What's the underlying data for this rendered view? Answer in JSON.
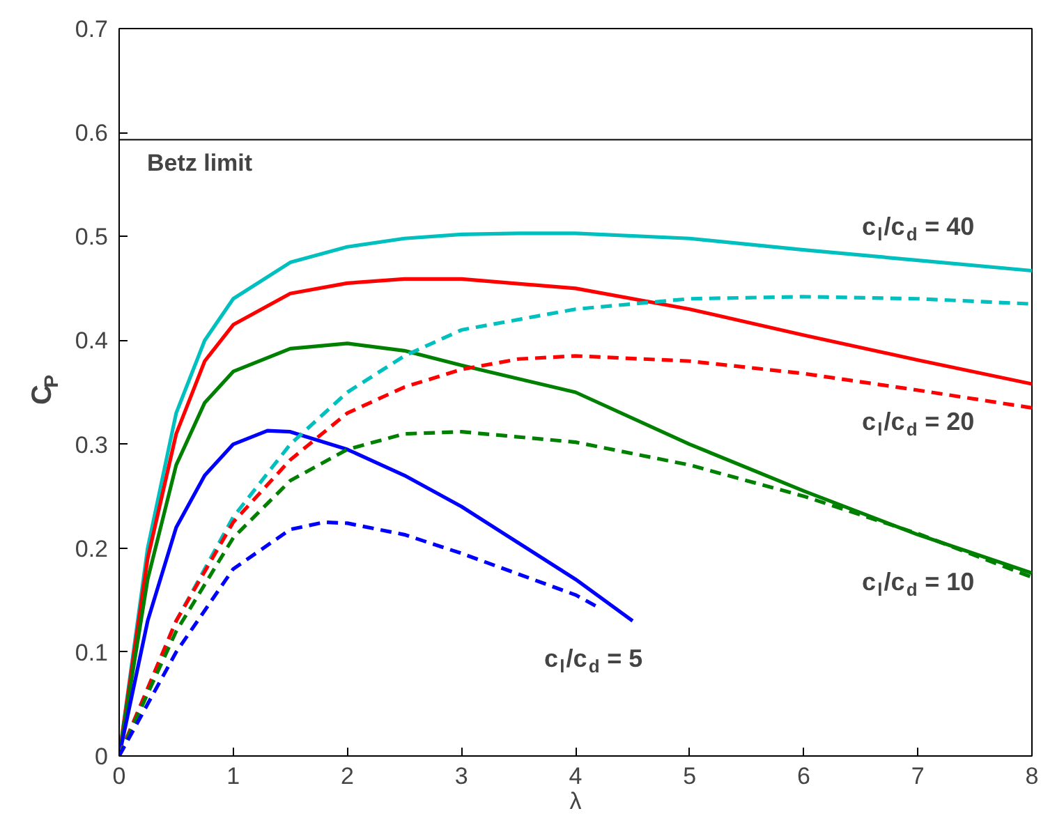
{
  "chart_data": {
    "type": "line",
    "xlabel": "λ",
    "ylabel": "C$_{P}$",
    "xlim": [
      0,
      8
    ],
    "ylim": [
      0,
      0.7
    ],
    "xticks": [
      0,
      1,
      2,
      3,
      4,
      5,
      6,
      7,
      8
    ],
    "yticks": [
      0,
      0.1,
      0.2,
      0.3,
      0.4,
      0.5,
      0.6,
      0.7
    ],
    "grid": false,
    "marker": "none",
    "series": [
      {
        "color": "#00bfbf",
        "line_style": "solid",
        "x": [
          0,
          0.25,
          0.5,
          0.75,
          1,
          1.5,
          2,
          2.5,
          3,
          3.5,
          4,
          5,
          6,
          7,
          8
        ],
        "values": [
          0,
          0.2,
          0.33,
          0.4,
          0.44,
          0.475,
          0.49,
          0.498,
          0.502,
          0.503,
          0.503,
          0.498,
          0.487,
          0.477,
          0.467
        ]
      },
      {
        "color": "#ff0000",
        "line_style": "solid",
        "x": [
          0,
          0.25,
          0.5,
          0.75,
          1,
          1.5,
          2,
          2.5,
          3,
          4,
          5,
          6,
          7,
          8
        ],
        "values": [
          0,
          0.19,
          0.31,
          0.38,
          0.415,
          0.445,
          0.455,
          0.459,
          0.459,
          0.45,
          0.43,
          0.405,
          0.381,
          0.358
        ]
      },
      {
        "color": "#008000",
        "line_style": "solid",
        "x": [
          0,
          0.25,
          0.5,
          0.75,
          1,
          1.5,
          2,
          2.5,
          3,
          4,
          5,
          6,
          7,
          8
        ],
        "values": [
          0,
          0.17,
          0.28,
          0.34,
          0.37,
          0.392,
          0.397,
          0.39,
          0.376,
          0.35,
          0.3,
          0.255,
          0.213,
          0.176
        ]
      },
      {
        "color": "#0000ff",
        "line_style": "solid",
        "x": [
          0,
          0.25,
          0.5,
          0.75,
          1,
          1.3,
          1.5,
          2,
          2.5,
          3,
          3.5,
          4,
          4.5
        ],
        "values": [
          0,
          0.13,
          0.22,
          0.27,
          0.3,
          0.313,
          0.312,
          0.295,
          0.27,
          0.24,
          0.205,
          0.17,
          0.13
        ]
      },
      {
        "color": "#00bfbf",
        "line_style": "dashed",
        "x": [
          0,
          0.5,
          1,
          1.5,
          2,
          2.5,
          3,
          4,
          5,
          6,
          7,
          8
        ],
        "values": [
          0,
          0.13,
          0.23,
          0.3,
          0.35,
          0.385,
          0.41,
          0.43,
          0.44,
          0.442,
          0.44,
          0.435
        ]
      },
      {
        "color": "#ff0000",
        "line_style": "dashed",
        "x": [
          0,
          0.5,
          1,
          1.5,
          2,
          2.5,
          3,
          3.5,
          4,
          5,
          6,
          7,
          8
        ],
        "values": [
          0,
          0.13,
          0.225,
          0.285,
          0.33,
          0.355,
          0.372,
          0.382,
          0.385,
          0.38,
          0.368,
          0.352,
          0.335
        ]
      },
      {
        "color": "#008000",
        "line_style": "dashed",
        "x": [
          0,
          0.5,
          1,
          1.5,
          2,
          2.5,
          3,
          4,
          5,
          6,
          7,
          8
        ],
        "values": [
          0,
          0.12,
          0.21,
          0.265,
          0.295,
          0.31,
          0.312,
          0.302,
          0.28,
          0.25,
          0.214,
          0.172
        ]
      },
      {
        "color": "#0000ff",
        "line_style": "dashed",
        "x": [
          0,
          0.5,
          1,
          1.5,
          1.8,
          2,
          2.5,
          3,
          3.5,
          4,
          4.2
        ],
        "values": [
          0,
          0.1,
          0.18,
          0.218,
          0.225,
          0.224,
          0.213,
          0.195,
          0.175,
          0.155,
          0.143
        ]
      }
    ],
    "ref_lines": [
      {
        "axis": "y",
        "value": 0.593,
        "label": "Betz limit",
        "color": "#000000"
      }
    ],
    "annotations": [
      "c$_{l}$/c$_{d}$ = 40",
      "c$_{l}$/c$_{d}$ = 20",
      "c$_{l}$/c$_{d}$ = 10",
      "c$_{l}$/c$_{d}$ = 5"
    ]
  }
}
